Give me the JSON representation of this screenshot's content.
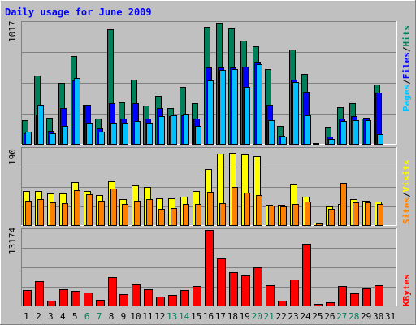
{
  "title": "Daily usage for June 2009",
  "colors": {
    "frame_bg": "#c0c0c0",
    "plot_bg": "#c0c0c0",
    "title": "#0000ff",
    "hits": "#00805a",
    "files": "#0000ff",
    "pages": "#00c0ff",
    "visits": "#ffff00",
    "sites": "#ff8000",
    "kbytes": "#ff0000",
    "weekend": "#00805a",
    "weekday": "#000000",
    "gridline": "#808080"
  },
  "chart_data": [
    {
      "type": "bar",
      "panel": "hits-files-pages",
      "max_label": "1017",
      "legend": [
        {
          "text": "Pages",
          "color": "#00c0ff"
        },
        {
          "text": "Files",
          "color": "#0000ff"
        },
        {
          "text": "Hits",
          "color": "#00805a"
        }
      ],
      "x": [
        1,
        2,
        3,
        4,
        5,
        6,
        7,
        8,
        9,
        10,
        11,
        12,
        13,
        14,
        15,
        16,
        17,
        18,
        19,
        20,
        21,
        22,
        23,
        24,
        25,
        26,
        27,
        28,
        29,
        30,
        31
      ],
      "ylim": [
        0,
        1017
      ],
      "grid": true,
      "series": [
        {
          "name": "Hits",
          "color": "#00805a",
          "values": [
            200,
            570,
            220,
            510,
            740,
            330,
            210,
            960,
            350,
            540,
            320,
            400,
            300,
            480,
            340,
            980,
            1017,
            970,
            870,
            820,
            630,
            150,
            790,
            590,
            10,
            140,
            310,
            340,
            210,
            500,
            0
          ]
        },
        {
          "name": "Files",
          "color": "#0000ff",
          "values": [
            90,
            240,
            110,
            300,
            530,
            330,
            130,
            340,
            210,
            340,
            210,
            300,
            230,
            240,
            210,
            640,
            640,
            640,
            650,
            690,
            330,
            70,
            540,
            440,
            0,
            60,
            210,
            230,
            220,
            430,
            0
          ]
        },
        {
          "name": "Pages",
          "color": "#00c0ff",
          "values": [
            100,
            330,
            90,
            150,
            550,
            180,
            100,
            180,
            180,
            190,
            180,
            230,
            240,
            250,
            150,
            530,
            620,
            630,
            480,
            670,
            200,
            60,
            520,
            240,
            0,
            40,
            190,
            200,
            200,
            80,
            0
          ]
        }
      ]
    },
    {
      "type": "bar",
      "panel": "visits-sites",
      "max_label": "190",
      "legend": [
        {
          "text": "Sites",
          "color": "#ff8000"
        },
        {
          "text": "Visits",
          "color": "#ffff00"
        }
      ],
      "x": [
        1,
        2,
        3,
        4,
        5,
        6,
        7,
        8,
        9,
        10,
        11,
        12,
        13,
        14,
        15,
        16,
        17,
        18,
        19,
        20,
        21,
        22,
        23,
        24,
        25,
        26,
        27,
        28,
        29,
        30,
        31
      ],
      "ylim": [
        0,
        190
      ],
      "grid": true,
      "series": [
        {
          "name": "Visits",
          "color": "#ffff00",
          "values": [
            84,
            84,
            78,
            78,
            108,
            84,
            74,
            110,
            64,
            100,
            96,
            66,
            66,
            70,
            84,
            140,
            178,
            180,
            176,
            172,
            50,
            50,
            102,
            70,
            6,
            46,
            52,
            64,
            60,
            58,
            0
          ]
        },
        {
          "name": "Sites",
          "color": "#ff8000",
          "values": [
            60,
            64,
            56,
            54,
            86,
            76,
            60,
            90,
            52,
            60,
            64,
            40,
            42,
            52,
            52,
            82,
            54,
            94,
            80,
            74,
            48,
            46,
            52,
            58,
            4,
            40,
            106,
            56,
            56,
            52,
            0
          ]
        }
      ]
    },
    {
      "type": "bar",
      "panel": "kbytes",
      "max_label": "13174",
      "legend": [
        {
          "text": "KBytes",
          "color": "#ff0000"
        }
      ],
      "x": [
        1,
        2,
        3,
        4,
        5,
        6,
        7,
        8,
        9,
        10,
        11,
        12,
        13,
        14,
        15,
        16,
        17,
        18,
        19,
        20,
        21,
        22,
        23,
        24,
        25,
        26,
        27,
        28,
        29,
        30,
        31
      ],
      "ylim": [
        0,
        13174
      ],
      "grid": true,
      "series": [
        {
          "name": "KBytes",
          "color": "#ff0000",
          "values": [
            2700,
            4300,
            900,
            2900,
            2500,
            2300,
            1000,
            5000,
            2000,
            3700,
            2900,
            1600,
            1800,
            2700,
            3400,
            13174,
            8200,
            5800,
            5200,
            6600,
            3600,
            800,
            4500,
            10800,
            300,
            500,
            3400,
            2100,
            3000,
            3600,
            0
          ]
        }
      ]
    }
  ],
  "x_labels": [
    "1",
    "2",
    "3",
    "4",
    "5",
    "6",
    "7",
    "8",
    "9",
    "10",
    "11",
    "12",
    "13",
    "14",
    "15",
    "16",
    "17",
    "18",
    "19",
    "20",
    "21",
    "22",
    "23",
    "24",
    "25",
    "26",
    "27",
    "28",
    "29",
    "30",
    "31"
  ],
  "weekend_days": [
    6,
    7,
    13,
    14,
    20,
    21,
    27,
    28
  ]
}
